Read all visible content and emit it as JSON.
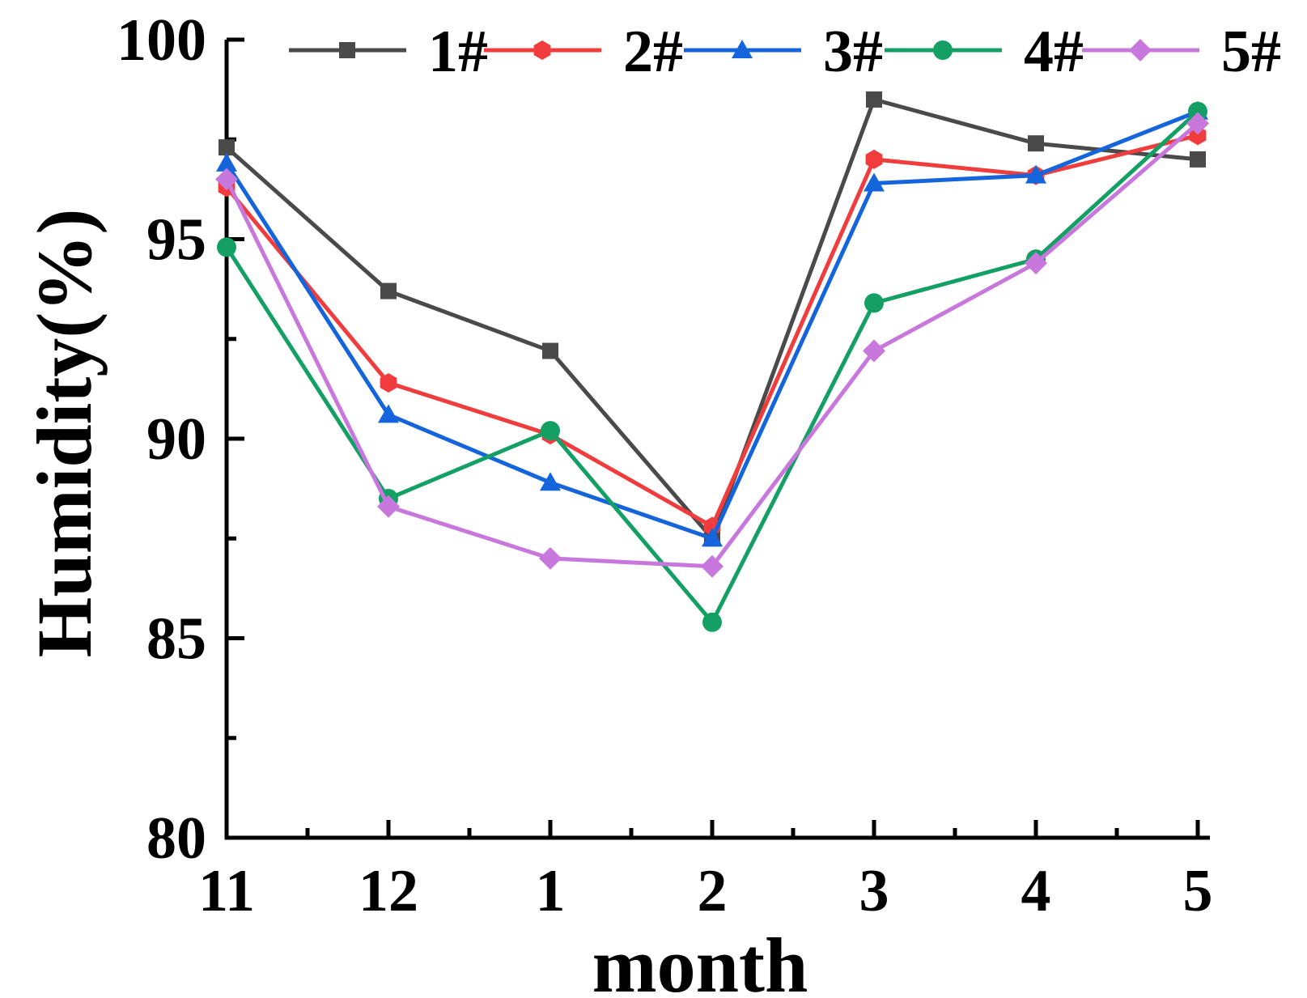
{
  "chart_data": {
    "type": "line",
    "title": "",
    "xlabel": "month",
    "ylabel": "Humidity(%)",
    "categories": [
      "11",
      "12",
      "1",
      "2",
      "3",
      "4",
      "5"
    ],
    "ylim": [
      80,
      100
    ],
    "yticks": [
      "80",
      "85",
      "90",
      "95",
      "100"
    ],
    "grid": false,
    "legend_position": "top",
    "series": [
      {
        "name": "1#",
        "marker": "square",
        "color": "#4a4a4a",
        "values": [
          97.3,
          93.7,
          92.2,
          87.5,
          98.5,
          97.4,
          97.0
        ]
      },
      {
        "name": "2#",
        "marker": "hexagon",
        "color": "#f03c3c",
        "values": [
          96.3,
          91.4,
          90.1,
          87.8,
          97.0,
          96.6,
          97.6
        ]
      },
      {
        "name": "3#",
        "marker": "triangle",
        "color": "#1464dc",
        "values": [
          96.9,
          90.6,
          88.9,
          87.5,
          96.4,
          96.6,
          98.2
        ]
      },
      {
        "name": "4#",
        "marker": "circle",
        "color": "#14a064",
        "values": [
          94.8,
          88.5,
          90.2,
          85.4,
          93.4,
          94.5,
          98.2
        ]
      },
      {
        "name": "5#",
        "marker": "diamond",
        "color": "#c878dc",
        "values": [
          96.5,
          88.3,
          87.0,
          86.8,
          92.2,
          94.4,
          97.9
        ]
      }
    ]
  }
}
